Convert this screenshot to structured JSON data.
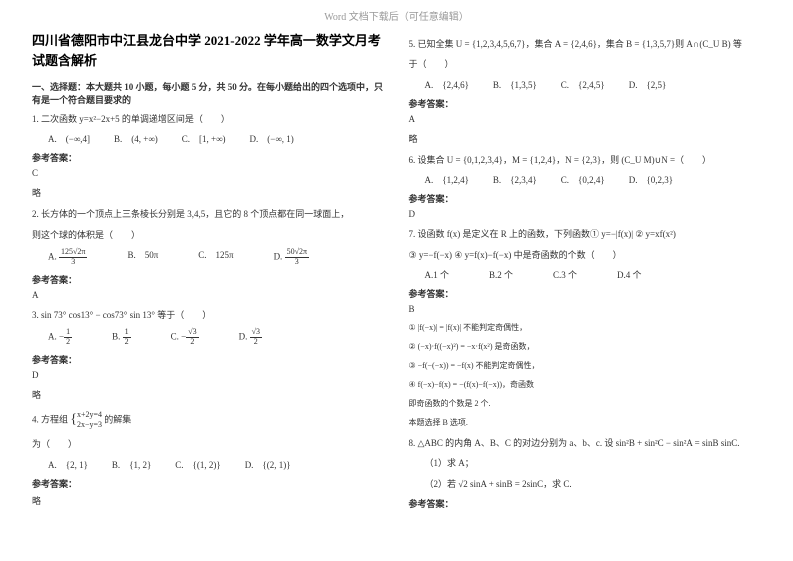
{
  "header": "Word 文档下载后（可任意编辑）",
  "title": "四川省德阳市中江县龙台中学 2021-2022 学年高一数学文月考试题含解析",
  "section1": "一、选择题：本大题共 10 小题，每小题 5 分，共 50 分。在每小题给出的四个选项中，只有是一个符合题目要求的",
  "q1": {
    "text": "1. 二次函数 y=x²−2x+5 的单调递增区间是（　　）",
    "optA": "A.　(−∞,4]",
    "optB": "B.　(4, +∞)",
    "optC": "C.　[1, +∞)",
    "optD": "D.　(−∞, 1)",
    "ansLabel": "参考答案：",
    "ans": "C",
    "note": "略"
  },
  "q2": {
    "text": "2. 长方体的一个顶点上三条棱长分别是 3,4,5，且它的 8 个顶点都在同一球面上，",
    "text2": "则这个球的体积是（　　）",
    "optA": "A.",
    "optAval_num": "125√2π",
    "optAval_den": "3",
    "optB": "B.　50π",
    "optC": "C.　125π",
    "optD": "D.",
    "optDval_num": "50√2π",
    "optDval_den": "3",
    "ansLabel": "参考答案：",
    "ans": "A"
  },
  "q3": {
    "text": "3. sin 73° cos13° − cos73° sin 13° 等于（　　）",
    "optA": "A.",
    "optAnum": "1",
    "optAden": "2",
    "optAneg": "−",
    "optB": "B.",
    "optBnum": "1",
    "optBden": "2",
    "optC": "C.",
    "optCnum": "√3",
    "optCden": "2",
    "optCneg": "−",
    "optD": "D.",
    "optDnum": "√3",
    "optDden": "2",
    "ansLabel": "参考答案：",
    "ans": "D",
    "note": "略"
  },
  "q4": {
    "text": "4. 方程组",
    "eq1": "x+2y=4",
    "eq2": "2x−y=3",
    "text2": "的解集",
    "text3": "为（　　）",
    "optA": "A.　{2, 1}",
    "optB": "B.　{1, 2}",
    "optC": "C.　{(1, 2)}",
    "optD": "D.　{(2, 1)}",
    "ansLabel": "参考答案：",
    "note": "略"
  },
  "q5": {
    "text": "5. 已知全集 U = {1,2,3,4,5,6,7}，集合 A = {2,4,6}，集合 B = {1,3,5,7}则 A∩(C_U B) 等",
    "text2": "于（　　）",
    "optA": "A.　{2,4,6}",
    "optB": "B.　{1,3,5}",
    "optC": "C.　{2,4,5}",
    "optD": "D.　{2,5}",
    "ansLabel": "参考答案：",
    "ans": "A",
    "note": "略"
  },
  "q6": {
    "text": "6. 设集合 U = {0,1,2,3,4}，M = {1,2,4}，N = {2,3}，则 (C_U M)∪N =（　　）",
    "optA": "A.　{1,2,4}",
    "optB": "B.　{2,3,4}",
    "optC": "C.　{0,2,4}",
    "optD": "D.　{0,2,3}",
    "ansLabel": "参考答案：",
    "ans": "D"
  },
  "q7": {
    "text": "7. 设函数 f(x) 是定义在 R 上的函数，下列函数① y=−|f(x)| ② y=xf(x²)",
    "text2": "③ y=−f(−x) ④ y=f(x)−f(−x) 中是奇函数的个数（　　）",
    "optA": "A.1 个",
    "optB": "B.2 个",
    "optC": "C.3 个",
    "optD": "D.4 个",
    "ansLabel": "参考答案：",
    "ans": "B",
    "line1": "① |f(−x)| = |f(x)| 不能判定奇偶性，",
    "line2": "② (−x)·f((−x)²) = −x·f(x²) 是奇函数，",
    "line3": "③ −f(−(−x)) = −f(x) 不能判定奇偶性，",
    "line4": "④ f(−x)−f(x) = −(f(x)−f(−x))，奇函数",
    "line5": "即奇函数的个数是 2 个.",
    "line6": "本题选择 B 选项."
  },
  "q8": {
    "text": "8. △ABC 的内角 A、B、C 的对边分别为 a、b、c. 设 sin²B + sin²C − sin²A = sinB sinC.",
    "sub1": "（1）求 A；",
    "sub2": "（2）若 √2 sinA + sinB = 2sinC，求 C.",
    "ansLabel": "参考答案："
  }
}
